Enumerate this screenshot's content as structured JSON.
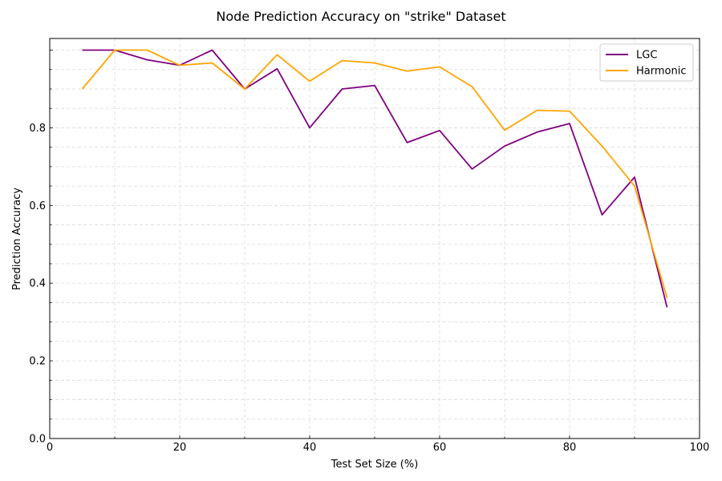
{
  "chart_data": {
    "type": "line",
    "title": "Node Prediction Accuracy on \"strike\" Dataset",
    "xlabel": "Test Set Size (%)",
    "ylabel": "Prediction Accuracy",
    "xlim": [
      0,
      100
    ],
    "ylim": [
      0,
      1.03
    ],
    "xticks": [
      0,
      20,
      40,
      60,
      80,
      100
    ],
    "xtick_labels": [
      "0",
      "20",
      "40",
      "60",
      "80",
      "100"
    ],
    "yticks": [
      0.0,
      0.2,
      0.4,
      0.6,
      0.8
    ],
    "ytick_labels": [
      "0.0",
      "0.2",
      "0.4",
      "0.6",
      "0.8"
    ],
    "grid": true,
    "legend_position": "top-right",
    "x": [
      5,
      10,
      15,
      20,
      25,
      30,
      35,
      40,
      45,
      50,
      55,
      60,
      65,
      70,
      75,
      80,
      85,
      90,
      95
    ],
    "series": [
      {
        "name": "LGC",
        "color": "#800080",
        "values": [
          1.0,
          1.0,
          0.975,
          0.961,
          1.0,
          0.9,
          0.952,
          0.8,
          0.9,
          0.909,
          0.762,
          0.793,
          0.694,
          0.753,
          0.789,
          0.811,
          0.576,
          0.673,
          0.338
        ]
      },
      {
        "name": "Harmonic",
        "color": "#FFA500",
        "values": [
          0.9,
          1.0,
          1.0,
          0.961,
          0.967,
          0.9,
          0.988,
          0.92,
          0.973,
          0.967,
          0.946,
          0.957,
          0.906,
          0.794,
          0.845,
          0.843,
          0.753,
          0.65,
          0.362
        ]
      }
    ]
  }
}
